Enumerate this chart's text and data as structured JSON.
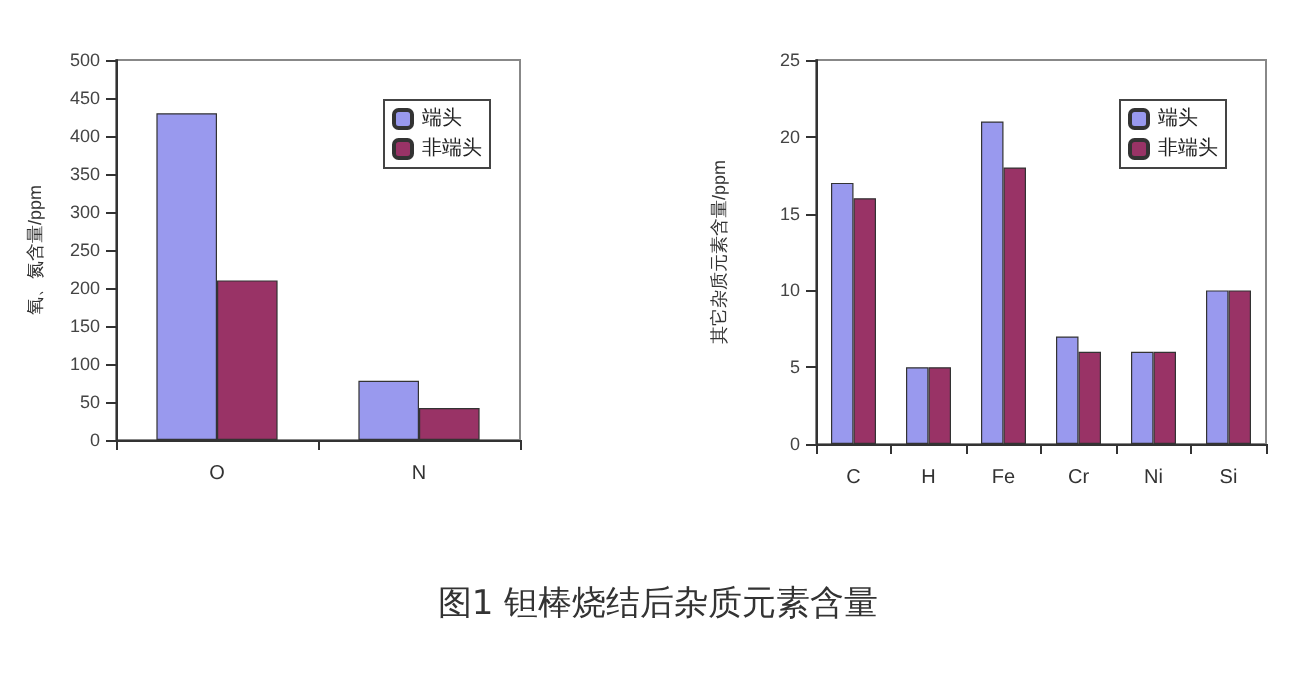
{
  "chart_data": [
    {
      "type": "bar",
      "ylabel": "氧、氮含量/ppm",
      "categories": [
        "O",
        "N"
      ],
      "series": [
        {
          "name": "端头",
          "color": "#9999ee",
          "values": [
            430,
            78
          ]
        },
        {
          "name": "非端头",
          "color": "#993366",
          "values": [
            210,
            42
          ]
        }
      ],
      "ylim": [
        0,
        500
      ],
      "yticks": [
        0,
        50,
        100,
        150,
        200,
        250,
        300,
        350,
        400,
        450,
        500
      ],
      "grid": false,
      "legend": "top right",
      "annotations": [
        "图1 钽棒烧结后杂质元素含量"
      ]
    },
    {
      "type": "bar",
      "ylabel": "其它杂质元素含量/ppm",
      "categories": [
        "C",
        "H",
        "Fe",
        "Cr",
        "Ni",
        "Si"
      ],
      "series": [
        {
          "name": "端头",
          "color": "#9999ee",
          "values": [
            17,
            5,
            21,
            7,
            6,
            10
          ]
        },
        {
          "name": "非端头",
          "color": "#993366",
          "values": [
            16,
            5,
            18,
            6,
            6,
            10
          ]
        }
      ],
      "ylim": [
        0,
        25
      ],
      "yticks": [
        0,
        5,
        10,
        15,
        20,
        25
      ],
      "grid": false,
      "legend": "top right"
    }
  ]
}
